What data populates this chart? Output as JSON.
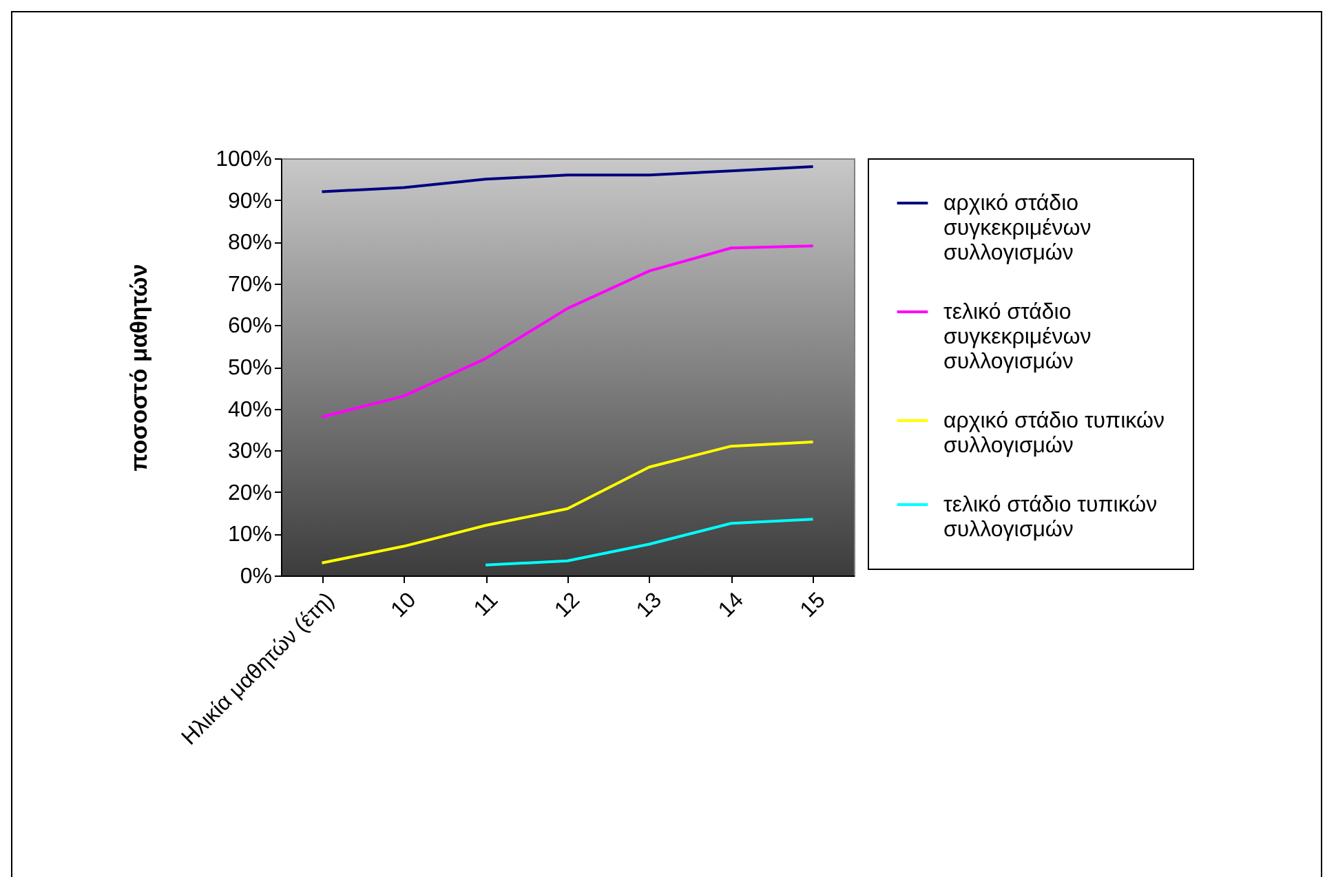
{
  "chart_data": {
    "type": "line",
    "ylabel": "ποσοστό μαθητών",
    "categories": [
      "Ηλικία  μαθητών (έτη)",
      "10",
      "11",
      "12",
      "13",
      "14",
      "15"
    ],
    "series": [
      {
        "name": "αρχικό στάδιο συγκεκριμένων συλλογισμών",
        "color": "#000080",
        "values": [
          92,
          93,
          95,
          96,
          96,
          97,
          98
        ]
      },
      {
        "name": "τελικό στάδιο συγκεκριμένων συλλογισμών",
        "color": "#ff00ff",
        "values": [
          38,
          43,
          52,
          64,
          73,
          78.5,
          79
        ]
      },
      {
        "name": "αρχικό στάδιο τυπικών συλλογισμών",
        "color": "#ffff00",
        "values": [
          3,
          7,
          12,
          16,
          26,
          31,
          32
        ]
      },
      {
        "name": "τελικό στάδιο τυπικών συλλογισμών",
        "color": "#00ffff",
        "values": [
          null,
          null,
          2.5,
          3.5,
          7.5,
          12.5,
          13.5
        ]
      }
    ],
    "ylim": [
      0,
      100
    ],
    "yticks": [
      {
        "value": 0,
        "label": "0%"
      },
      {
        "value": 10,
        "label": "10%"
      },
      {
        "value": 20,
        "label": "20%"
      },
      {
        "value": 30,
        "label": "30%"
      },
      {
        "value": 40,
        "label": "40%"
      },
      {
        "value": 50,
        "label": "50%"
      },
      {
        "value": 60,
        "label": "60%"
      },
      {
        "value": 70,
        "label": "70%"
      },
      {
        "value": 80,
        "label": "80%"
      },
      {
        "value": 90,
        "label": "90%"
      },
      {
        "value": 100,
        "label": "100%"
      }
    ],
    "grid": false,
    "legend": "right",
    "marker": "none",
    "line_style": "solid"
  }
}
